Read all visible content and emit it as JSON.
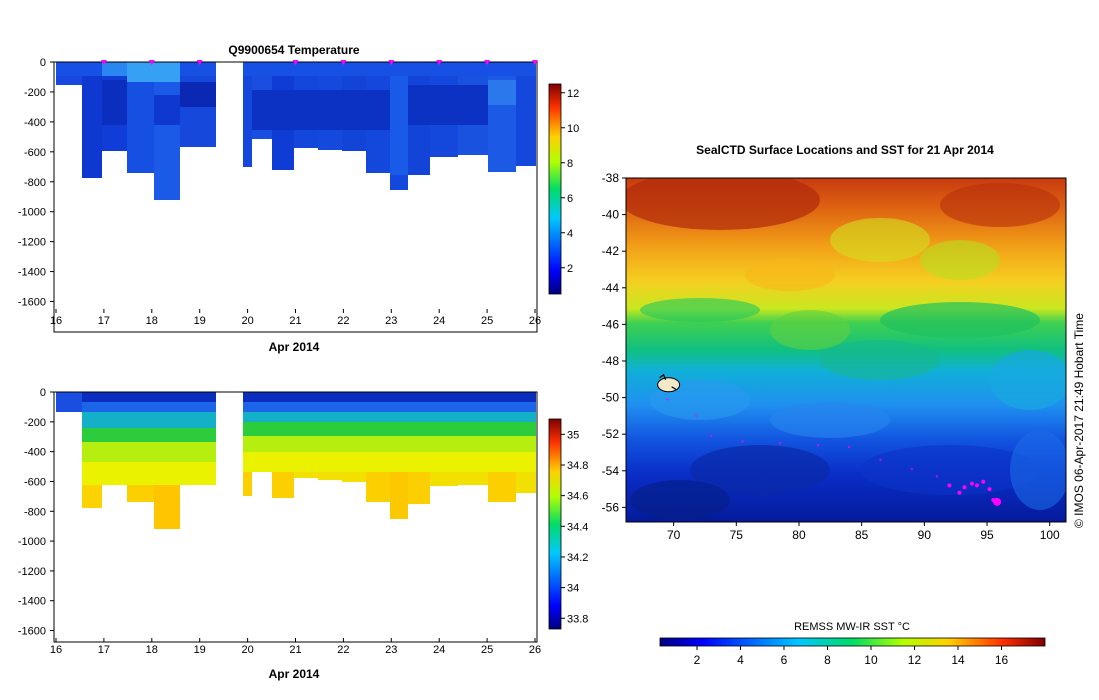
{
  "chart_data": [
    {
      "type": "heatmap",
      "title": "Q9900654  Temperature",
      "xlabel": "Apr 2014",
      "ylabel": "",
      "x_ticks": [
        "16",
        "17",
        "18",
        "19",
        "20",
        "21",
        "22",
        "23",
        "24",
        "25",
        "26"
      ],
      "y_ticks": [
        "0",
        "-200",
        "-400",
        "-600",
        "-800",
        "-1000",
        "-1200",
        "-1400",
        "-1600"
      ],
      "xlim": [
        16,
        26
      ],
      "ylim": [
        -1650,
        0
      ],
      "colorbar": {
        "min": 0.5,
        "max": 12.5,
        "ticks": [
          "2",
          "4",
          "6",
          "8",
          "10",
          "12"
        ]
      },
      "profile_days": [
        16.7,
        17.1,
        17.6,
        18.1,
        18.6,
        19.1,
        20.0,
        20.1,
        20.5,
        20.9,
        21.5,
        22.0,
        22.5,
        22.9,
        23.3,
        23.8,
        24.4,
        24.9,
        25.6,
        26.0
      ],
      "profile_max_depth": [
        -140,
        -750,
        -570,
        -720,
        -890,
        -540,
        -670,
        -600,
        -690,
        -560,
        -570,
        -580,
        -720,
        -730,
        -830,
        -730,
        -610,
        -600,
        -700,
        -660
      ],
      "surface_markers": [
        17,
        18,
        19,
        21,
        22,
        23,
        24,
        25,
        26
      ]
    },
    {
      "type": "heatmap",
      "title": "",
      "xlabel": "Apr 2014",
      "ylabel": "",
      "x_ticks": [
        "16",
        "17",
        "18",
        "19",
        "20",
        "21",
        "22",
        "23",
        "24",
        "25",
        "26"
      ],
      "y_ticks": [
        "0",
        "-200",
        "-400",
        "-600",
        "-800",
        "-1000",
        "-1200",
        "-1400",
        "-1600"
      ],
      "xlim": [
        16,
        26
      ],
      "ylim": [
        -1650,
        0
      ],
      "colorbar": {
        "min": 33.73,
        "max": 35.1,
        "ticks": [
          "33.8",
          "34",
          "34.2",
          "34.4",
          "34.6",
          "34.8",
          "35"
        ]
      }
    },
    {
      "type": "heatmap",
      "title": "SealCTD Surface Locations and SST for 21 Apr 2014",
      "xlabel": "",
      "ylabel": "",
      "x_ticks": [
        "70",
        "75",
        "80",
        "85",
        "90",
        "95",
        "100"
      ],
      "y_ticks": [
        "-38",
        "-40",
        "-42",
        "-44",
        "-46",
        "-48",
        "-50",
        "-52",
        "-54",
        "-56"
      ],
      "xlim": [
        66.2,
        101.3
      ],
      "ylim": [
        -56.8,
        -38.0
      ],
      "colorbar": {
        "label": "REMSS MW-IR SST °C",
        "min": 0.3,
        "max": 18,
        "ticks": [
          "2",
          "4",
          "6",
          "8",
          "10",
          "12",
          "14",
          "16"
        ]
      },
      "track": [
        [
          92,
          -54.8
        ],
        [
          92.8,
          -55.2
        ],
        [
          93.2,
          -54.9
        ],
        [
          93.8,
          -54.7
        ],
        [
          94.2,
          -54.8
        ],
        [
          94.7,
          -54.6
        ],
        [
          95.2,
          -55.0
        ],
        [
          95.5,
          -55.6
        ],
        [
          95.8,
          -55.7
        ]
      ],
      "faint_track": [
        [
          69.5,
          -50.1
        ],
        [
          71.8,
          -51.0
        ],
        [
          73.0,
          -52.1
        ],
        [
          75.5,
          -52.4
        ],
        [
          78.5,
          -52.5
        ],
        [
          81.5,
          -52.6
        ],
        [
          84,
          -52.7
        ],
        [
          86.5,
          -53.4
        ],
        [
          89,
          -53.9
        ],
        [
          91,
          -54.3
        ]
      ],
      "animal_location": [
        69.6,
        -49.3
      ],
      "side_text": "© IMOS 06-Apr-2017 21:49 Hobart Time"
    }
  ],
  "colors": {
    "surface_marker": "#ff00ff",
    "track": "#ff00ff"
  }
}
